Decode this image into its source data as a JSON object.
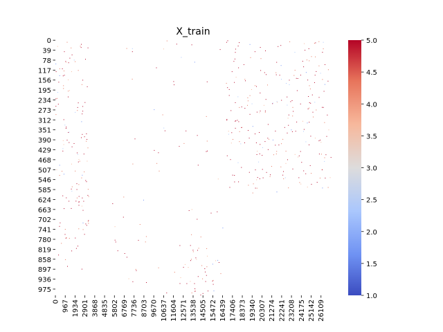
{
  "chart_data": {
    "type": "heatmap",
    "title": "X_train",
    "xlabel": "",
    "ylabel": "",
    "x_tick_labels": [
      "0",
      "967",
      "1934",
      "2901",
      "3868",
      "4835",
      "5802",
      "6769",
      "7736",
      "8703",
      "9670",
      "10637",
      "11604",
      "12571",
      "13538",
      "14505",
      "15472",
      "16439",
      "17406",
      "18373",
      "19340",
      "20307",
      "21274",
      "22241",
      "23208",
      "24175",
      "25142",
      "26109"
    ],
    "y_tick_labels": [
      "0",
      "39",
      "78",
      "117",
      "156",
      "195",
      "234",
      "273",
      "312",
      "351",
      "390",
      "429",
      "468",
      "507",
      "546",
      "585",
      "624",
      "663",
      "702",
      "741",
      "780",
      "819",
      "858",
      "897",
      "936",
      "975"
    ],
    "x_step": 967,
    "y_step": 39,
    "rows": 1000,
    "cols": 27080,
    "colorbar": {
      "min": 1.0,
      "max": 5.0,
      "ticks": [
        "1.0",
        "1.5",
        "2.0",
        "2.5",
        "3.0",
        "3.5",
        "4.0",
        "4.5",
        "5.0"
      ],
      "colormap": "coolwarm",
      "colors": [
        "#3b4cc0",
        "#6f92f3",
        "#aac7fd",
        "#dddcdc",
        "#f7b89c",
        "#e7745b",
        "#b40426"
      ]
    },
    "background_color": "#ffffff",
    "cell_note": "sparse ratings; most cells empty (white)"
  }
}
